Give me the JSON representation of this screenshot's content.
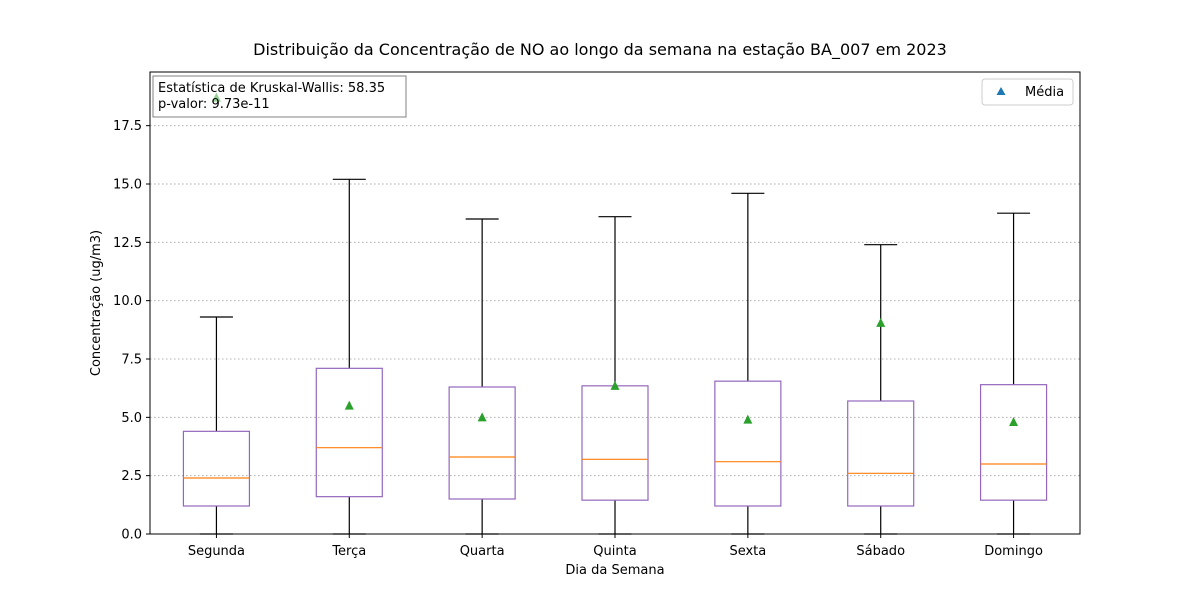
{
  "chart_data": {
    "type": "box",
    "title": "Distribuição da Concentração de NO ao longo da semana na estação BA_007 em 2023",
    "xlabel": "Dia da Semana",
    "ylabel": "Concentração (ug/m3)",
    "ylim": [
      0,
      19.8
    ],
    "yticks": [
      "0.0",
      "2.5",
      "5.0",
      "7.5",
      "10.0",
      "12.5",
      "15.0",
      "17.5"
    ],
    "grid": "y, dotted",
    "categories": [
      "Segunda",
      "Terça",
      "Quarta",
      "Quinta",
      "Sexta",
      "Sábado",
      "Domingo"
    ],
    "boxes": [
      {
        "whislo": 0.0,
        "q1": 1.2,
        "med": 2.4,
        "q3": 4.4,
        "whishi": 9.3,
        "mean": 18.7
      },
      {
        "whislo": 0.0,
        "q1": 1.6,
        "med": 3.7,
        "q3": 7.1,
        "whishi": 15.2,
        "mean": 5.5
      },
      {
        "whislo": 0.0,
        "q1": 1.5,
        "med": 3.3,
        "q3": 6.3,
        "whishi": 13.5,
        "mean": 5.0
      },
      {
        "whislo": 0.0,
        "q1": 1.45,
        "med": 3.2,
        "q3": 6.35,
        "whishi": 13.6,
        "mean": 6.35
      },
      {
        "whislo": 0.0,
        "q1": 1.2,
        "med": 3.1,
        "q3": 6.55,
        "whishi": 14.6,
        "mean": 4.9
      },
      {
        "whislo": 0.0,
        "q1": 1.2,
        "med": 2.6,
        "q3": 5.7,
        "whishi": 12.4,
        "mean": 9.05
      },
      {
        "whislo": 0.0,
        "q1": 1.45,
        "med": 3.0,
        "q3": 6.4,
        "whishi": 13.75,
        "mean": 4.8
      }
    ],
    "legend": {
      "label": "Média",
      "placement": "top-right"
    },
    "annotation": {
      "line1": "Estatística de Kruskal-Wallis: 58.35",
      "line2": "p-valor: 9.73e-11",
      "placement": "top-left"
    },
    "colors": {
      "box": "#9467bd",
      "median": "#ff7f0e",
      "mean": "#2ca02c",
      "legend_marker": "#1f77b4",
      "whisker": "#000000",
      "grid": "#b0b0b0"
    }
  }
}
